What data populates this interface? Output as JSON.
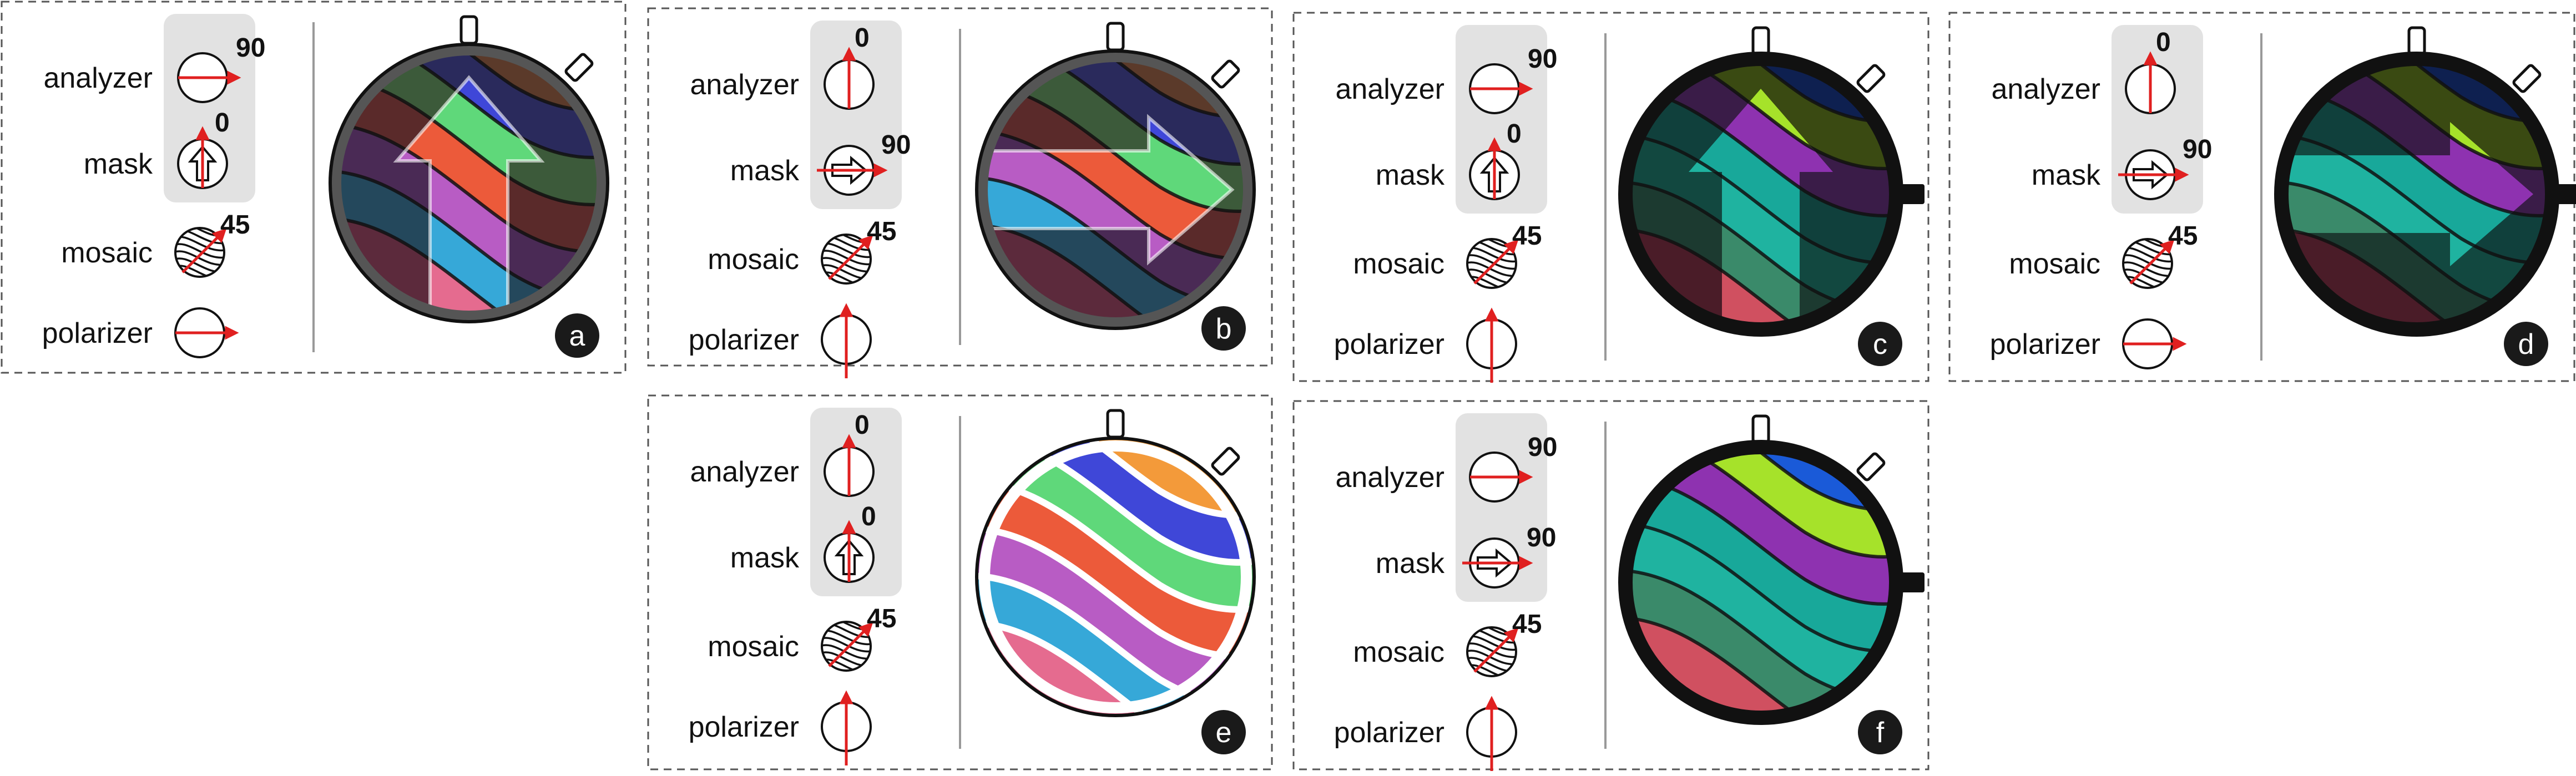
{
  "labels": {
    "analyzer": "analyzer",
    "mask": "mask",
    "mosaic": "mosaic",
    "polarizer": "polarizer"
  },
  "colors": {
    "arrow": "#e02020",
    "highlight": "#e2e2e2",
    "ink": "#111111",
    "band_colors": [
      "#f39a3a",
      "#3f47d8",
      "#5fd87a",
      "#ec5a3a",
      "#b85cc4",
      "#36a8d8",
      "#e56b8f"
    ]
  },
  "panels": [
    {
      "id": "a",
      "analyzer": {
        "angle": "90"
      },
      "mask": {
        "angle": "0"
      },
      "mosaic": {
        "angle": "45"
      },
      "polarizer": {
        "direction": "horizontal"
      },
      "view": "dim-bands-up-arrow",
      "rim": "thin"
    },
    {
      "id": "b",
      "analyzer": {
        "angle": "0"
      },
      "mask": {
        "angle": "90"
      },
      "mosaic": {
        "angle": "45"
      },
      "polarizer": {
        "direction": "vertical"
      },
      "view": "dim-bands-right-arrow",
      "rim": "thin"
    },
    {
      "id": "c",
      "analyzer": {
        "angle": "90"
      },
      "mask": {
        "angle": "0"
      },
      "mosaic": {
        "angle": "45"
      },
      "polarizer": {
        "direction": "vertical"
      },
      "view": "complement-bands-up-arrow",
      "rim": "thick"
    },
    {
      "id": "d",
      "analyzer": {
        "angle": "0"
      },
      "mask": {
        "angle": "90"
      },
      "mosaic": {
        "angle": "45"
      },
      "polarizer": {
        "direction": "horizontal"
      },
      "view": "complement-bands-right-arrow",
      "rim": "thick"
    },
    {
      "id": "e",
      "analyzer": {
        "angle": "0"
      },
      "mask": {
        "angle": "0"
      },
      "mosaic": {
        "angle": "45"
      },
      "polarizer": {
        "direction": "vertical"
      },
      "view": "bright-bands",
      "rim": "thin-white"
    },
    {
      "id": "f",
      "analyzer": {
        "angle": "90"
      },
      "mask": {
        "angle": "90"
      },
      "mosaic": {
        "angle": "45"
      },
      "polarizer": {
        "direction": "vertical"
      },
      "view": "complement-bands",
      "rim": "thick"
    }
  ]
}
